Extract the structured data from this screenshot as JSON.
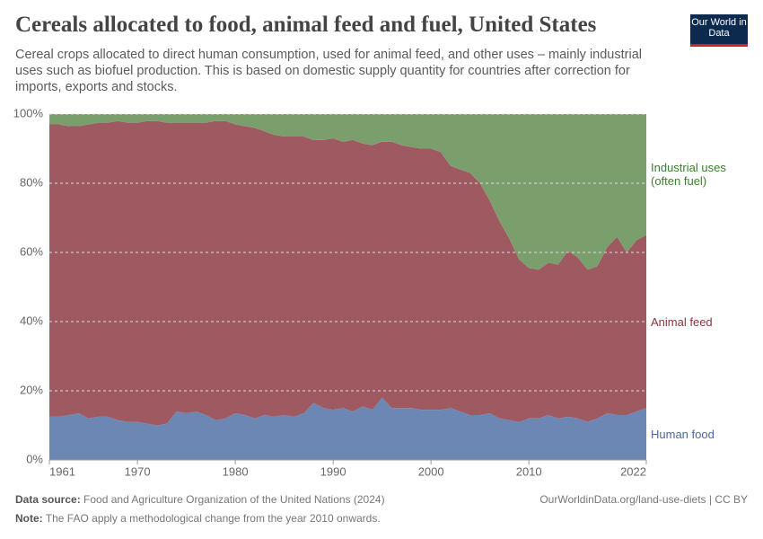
{
  "chart_data": {
    "type": "stacked-area",
    "title": "Cereals allocated to food, animal feed and fuel, United States",
    "subtitle": "Cereal crops allocated to direct human consumption, used for animal feed, and other uses – mainly industrial uses such as biofuel production. This is based on domestic supply quantity for countries after correction for imports, exports and stocks.",
    "logo": "Our World in Data",
    "source_label": "Data source:",
    "source": "Food and Agriculture Organization of the United Nations (2024)",
    "url": "OurWorldinData.org/land-use-diets | CC BY",
    "note_label": "Note:",
    "note": "The FAO apply a methodological change from the year 2010 onwards.",
    "x": [
      1961,
      1962,
      1963,
      1964,
      1965,
      1966,
      1967,
      1968,
      1969,
      1970,
      1971,
      1972,
      1973,
      1974,
      1975,
      1976,
      1977,
      1978,
      1979,
      1980,
      1981,
      1982,
      1983,
      1984,
      1985,
      1986,
      1987,
      1988,
      1989,
      1990,
      1991,
      1992,
      1993,
      1994,
      1995,
      1996,
      1997,
      1998,
      1999,
      2000,
      2001,
      2002,
      2003,
      2004,
      2005,
      2006,
      2007,
      2008,
      2009,
      2010,
      2011,
      2012,
      2013,
      2014,
      2015,
      2016,
      2017,
      2018,
      2019,
      2020,
      2021,
      2022
    ],
    "xlim": [
      1961,
      2022
    ],
    "xticks": [
      1961,
      1970,
      1980,
      1990,
      2000,
      2010,
      2022
    ],
    "ylim": [
      0,
      100
    ],
    "yticks": [
      {
        "value": 0,
        "label": "0%"
      },
      {
        "value": 20,
        "label": "20%"
      },
      {
        "value": 40,
        "label": "40%"
      },
      {
        "value": 60,
        "label": "60%"
      },
      {
        "value": 80,
        "label": "80%"
      },
      {
        "value": 100,
        "label": "100%"
      }
    ],
    "grid": true,
    "series": [
      {
        "name": "Human food",
        "color": "#6d87b4",
        "label_color": "#4a68a0",
        "values": [
          12.5,
          12.5,
          13,
          13.5,
          12,
          12.5,
          12.5,
          11.5,
          11,
          11,
          10.5,
          10,
          10.5,
          14,
          13.5,
          14,
          13,
          11.5,
          12,
          13.5,
          13,
          12,
          13,
          12.5,
          13,
          12.5,
          13.5,
          16.5,
          15,
          14.5,
          15,
          14,
          15.5,
          14.5,
          18,
          15,
          15,
          15,
          14.5,
          14.5,
          14.5,
          15,
          14,
          13,
          13,
          13.5,
          12,
          11.5,
          11,
          12,
          12,
          13,
          12,
          12.5,
          12,
          11,
          12,
          13.5,
          13,
          13,
          14,
          15
        ]
      },
      {
        "name": "Animal feed",
        "color": "#9e5961",
        "label_color": "#8a3540",
        "values": [
          84.5,
          84.5,
          83.5,
          83,
          85,
          85,
          85,
          86.5,
          86.5,
          86.5,
          87.5,
          88,
          87,
          83.5,
          84,
          83.5,
          84.5,
          86.5,
          86,
          83.5,
          83.5,
          84,
          82,
          81.5,
          80.5,
          81,
          80,
          76,
          77.5,
          78.5,
          77,
          78.5,
          76,
          76.5,
          74,
          77,
          76,
          75.5,
          75.5,
          75.5,
          74.5,
          70,
          70,
          70,
          67,
          61.5,
          57,
          52.5,
          47,
          43.5,
          43,
          44,
          44.5,
          48,
          46.5,
          44,
          44,
          48,
          51.5,
          47,
          49.5,
          50
        ]
      },
      {
        "name": "Industrial uses (often fuel)",
        "color": "#7a9e6c",
        "label_color": "#3d7d2f",
        "values": [
          3,
          3,
          3.5,
          3.5,
          3,
          2.5,
          2.5,
          2,
          2.5,
          2.5,
          2,
          2,
          2.5,
          2.5,
          2.5,
          2.5,
          2.5,
          2,
          2,
          3,
          3.5,
          4,
          5,
          6,
          6.5,
          6.5,
          6.5,
          7.5,
          7.5,
          7,
          8,
          7.5,
          8.5,
          9,
          8,
          8,
          9,
          9.5,
          10,
          10,
          11,
          15,
          16,
          17,
          20,
          25,
          31,
          36,
          42,
          44.5,
          45,
          43,
          43.5,
          39.5,
          41.5,
          45,
          44,
          38.5,
          35.5,
          40,
          36.5,
          35
        ]
      }
    ]
  }
}
